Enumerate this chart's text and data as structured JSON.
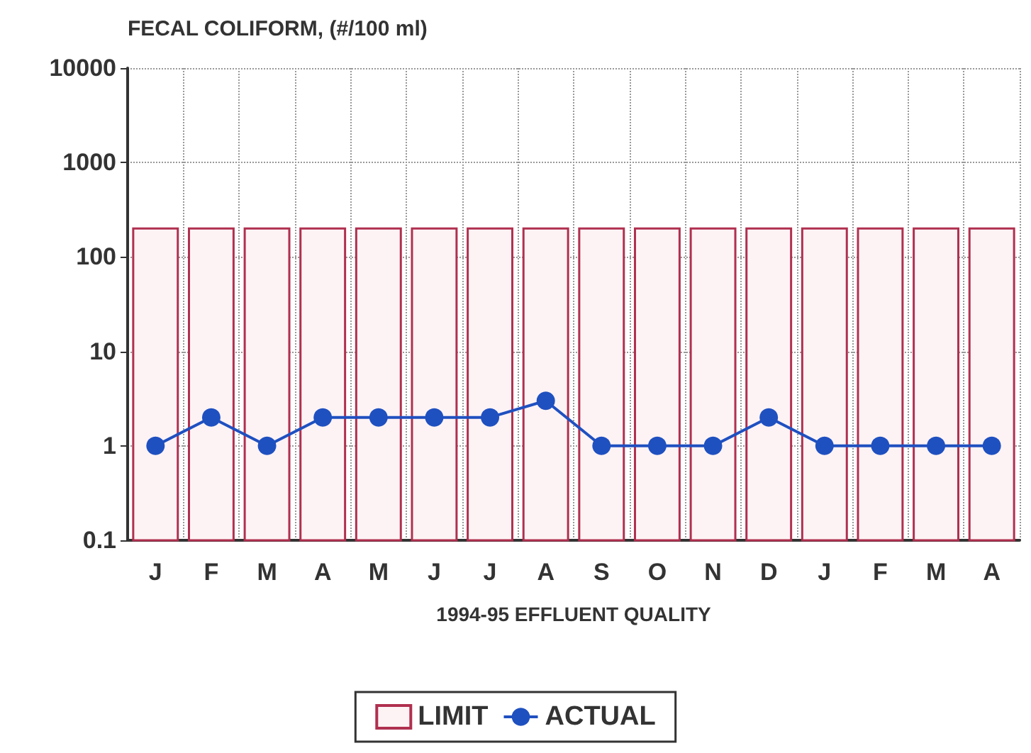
{
  "chart_data": {
    "type": "bar",
    "title": "FECAL COLIFORM, (#/100 ml)",
    "xlabel": "1994-95 EFFLUENT QUALITY",
    "categories": [
      "J",
      "F",
      "M",
      "A",
      "M",
      "J",
      "J",
      "A",
      "S",
      "O",
      "N",
      "D",
      "J",
      "F",
      "M",
      "A"
    ],
    "series": [
      {
        "name": "LIMIT",
        "color": "#b0304f",
        "values": [
          200,
          200,
          200,
          200,
          200,
          200,
          200,
          200,
          200,
          200,
          200,
          200,
          200,
          200,
          200,
          200
        ]
      },
      {
        "name": "ACTUAL",
        "type": "line",
        "color": "#1f50c0",
        "values": [
          1,
          2,
          1,
          2,
          2,
          2,
          2,
          3,
          1,
          1,
          1,
          2,
          1,
          1,
          1,
          1
        ]
      }
    ],
    "log": "y",
    "ylim": [
      0.1,
      10000
    ],
    "yticks": [
      0.1,
      1,
      10,
      100,
      1000,
      10000
    ],
    "grid": true,
    "legend": "bottom",
    "marker": "circle",
    "line_style": "solid"
  }
}
